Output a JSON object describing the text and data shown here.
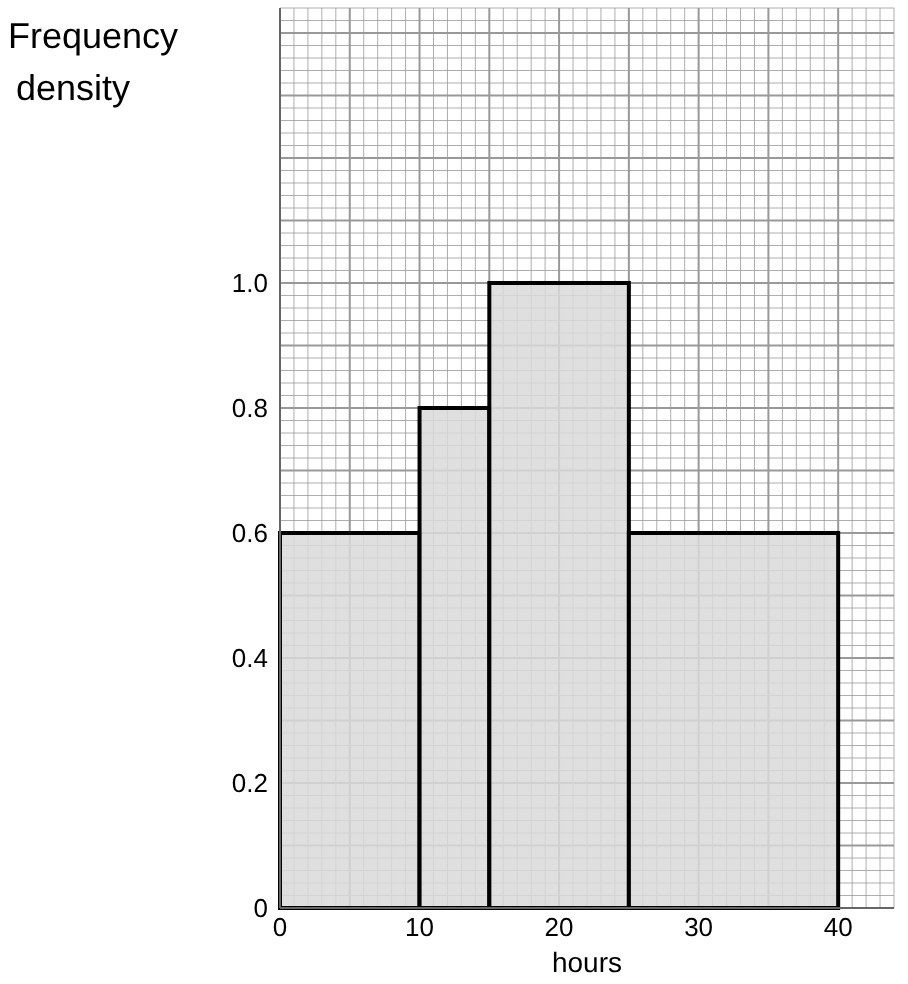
{
  "chart_data": {
    "type": "histogram",
    "bins": [
      0,
      10,
      15,
      25,
      40
    ],
    "values": [
      0.6,
      0.8,
      1.0,
      0.6
    ],
    "color": "#d9d9d9",
    "ylabel": "Frequency density",
    "xlabel": "hours",
    "xlim": [
      0,
      44
    ],
    "ylim": [
      0,
      1.44
    ],
    "xticks": [
      0,
      10,
      20,
      30,
      40
    ],
    "yticks": [
      0,
      0.2,
      0.4,
      0.6,
      0.8,
      {
        "value": 1,
        "label": "1.0"
      }
    ],
    "grid": true
  }
}
